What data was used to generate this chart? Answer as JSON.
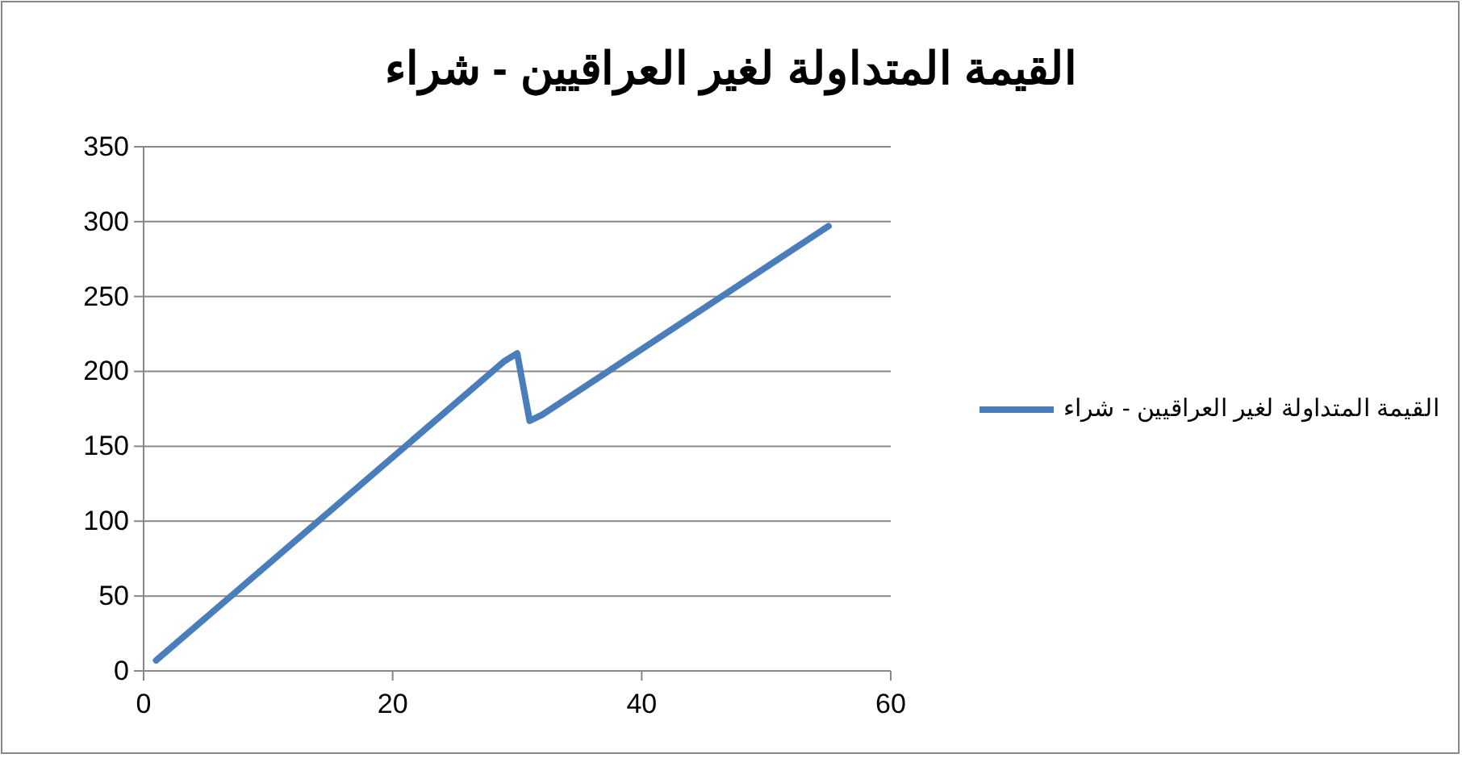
{
  "chart_data": {
    "type": "line",
    "title": "القيمة المتداولة لغير العراقيين - شراء",
    "x": [
      1,
      29,
      30,
      31,
      32,
      55
    ],
    "series": [
      {
        "name": "القيمة المتداولة لغير العراقيين - شراء",
        "color": "#4a7ebb",
        "values": [
          7,
          207,
          212,
          167,
          171,
          297
        ]
      }
    ],
    "xlim": [
      0,
      60
    ],
    "xticks": [
      0,
      20,
      40,
      60
    ],
    "ylim": [
      0,
      350
    ],
    "yticks": [
      0,
      50,
      100,
      150,
      200,
      250,
      300,
      350
    ],
    "grid": "y",
    "legend": "right",
    "marker": "none",
    "line_style": "solid"
  }
}
